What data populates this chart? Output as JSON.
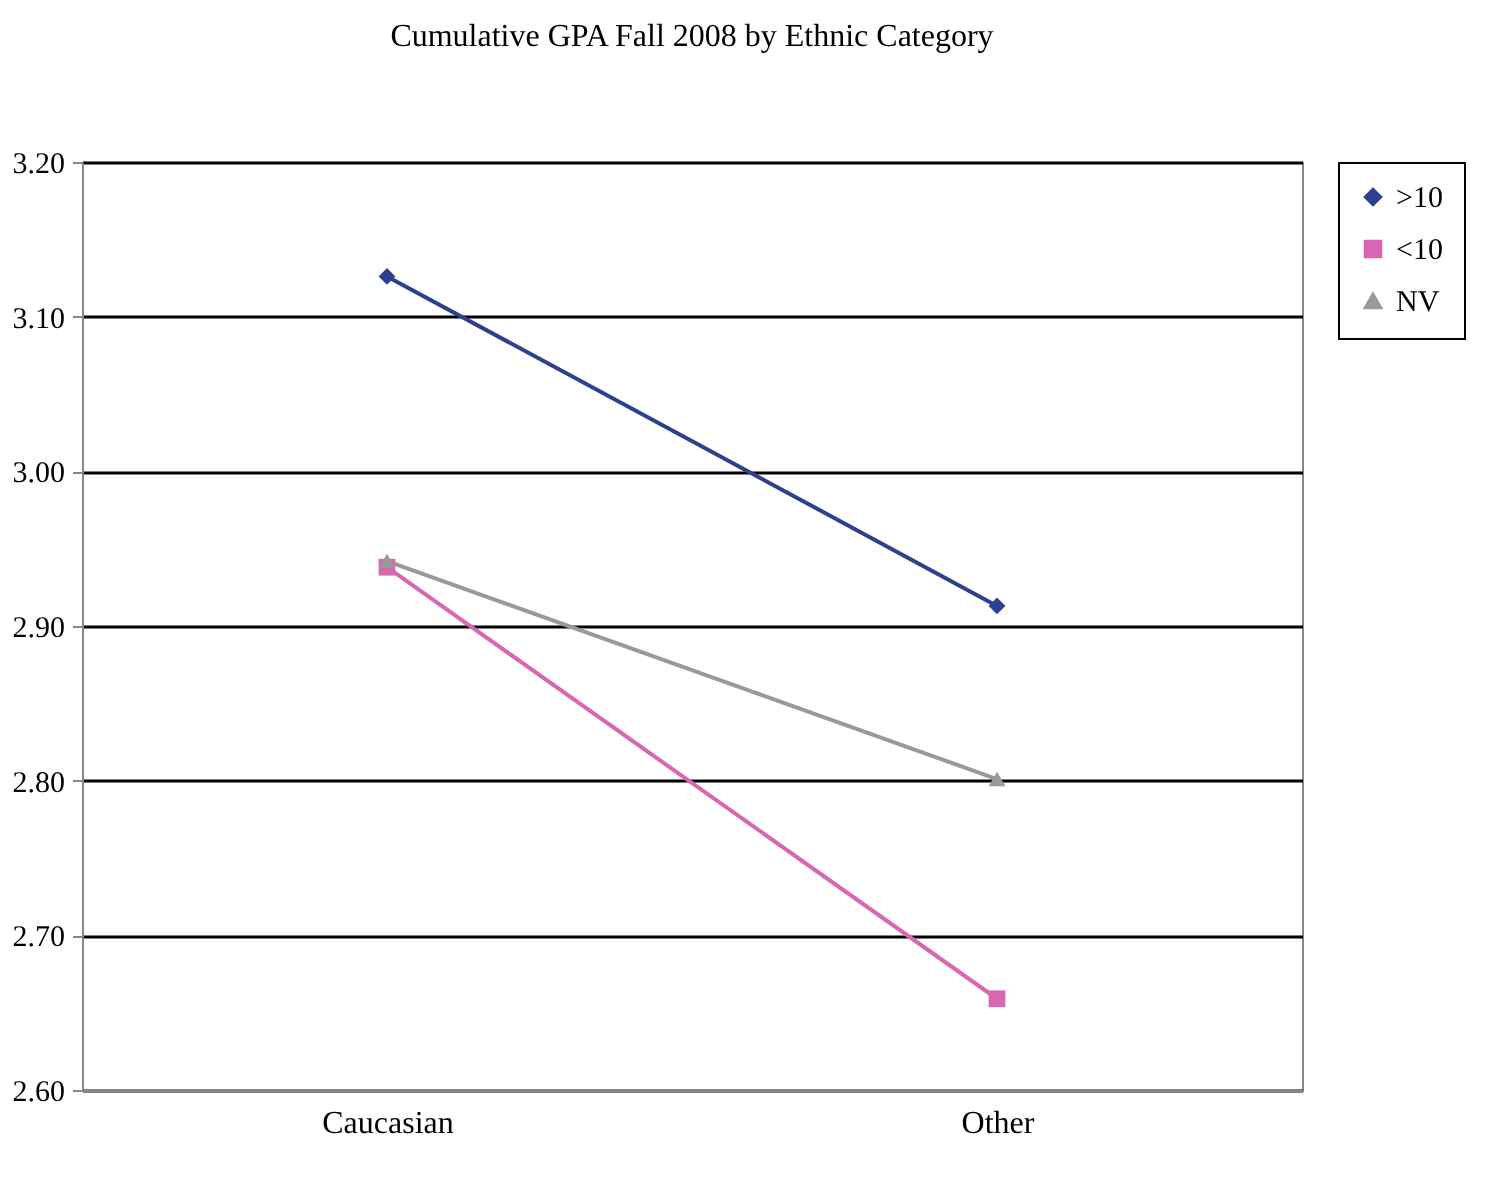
{
  "chart_data": {
    "type": "line",
    "title": "Cumulative GPA Fall 2008 by Ethnic Category",
    "categories": [
      "Caucasian",
      "Other"
    ],
    "series": [
      {
        "name": ">10",
        "color": "#2e3f8f",
        "marker": "diamond",
        "values": [
          3.126,
          2.913
        ]
      },
      {
        "name": "<10",
        "color": "#d966b3",
        "marker": "square",
        "values": [
          2.938,
          2.659
        ]
      },
      {
        "name": "NV",
        "color": "#999999",
        "marker": "triangle",
        "values": [
          2.942,
          2.801
        ]
      }
    ],
    "ylim": [
      2.6,
      3.2
    ],
    "yticks": [
      {
        "value": 2.6,
        "label": "2.60"
      },
      {
        "value": 2.7,
        "label": "2.70"
      },
      {
        "value": 2.8,
        "label": "2.80"
      },
      {
        "value": 2.9,
        "label": "2.90"
      },
      {
        "value": 3.0,
        "label": "3.00"
      },
      {
        "value": 3.1,
        "label": "3.10"
      },
      {
        "value": 3.2,
        "label": "3.20"
      }
    ],
    "grid": "y",
    "legend": "right"
  }
}
